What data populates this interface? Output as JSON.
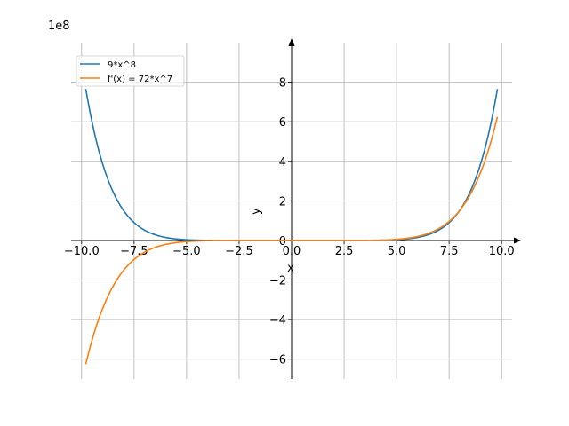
{
  "chart_data": {
    "type": "line",
    "offset_text": "1e8",
    "xlabel": "x",
    "ylabel": "y",
    "xlim": [
      -10.5,
      10.5
    ],
    "ylim": [
      -7.0,
      10.0
    ],
    "x_ticks": [
      -10.0,
      -7.5,
      -5.0,
      -2.5,
      0.0,
      2.5,
      5.0,
      7.5,
      10.0
    ],
    "x_tick_labels": [
      "−10.0",
      "−7.5",
      "−5.0",
      "−2.5",
      "0.0",
      "2.5",
      "5.0",
      "7.5",
      "10.0"
    ],
    "y_ticks": [
      -6,
      -4,
      -2,
      0,
      2,
      4,
      6,
      8
    ],
    "y_tick_labels": [
      "−6",
      "−4",
      "−2",
      "0",
      "2",
      "4",
      "6",
      "8"
    ],
    "grid": true,
    "legend_position": "top-left",
    "x_range": [
      -9.8,
      9.8
    ],
    "series": [
      {
        "name": "9*x^8",
        "formula": "9*x^8",
        "color": "#1f77b4"
      },
      {
        "name": "f'(x) = 72*x^7",
        "formula": "72*x^7",
        "color": "#ff7f0e"
      }
    ],
    "sample_points": {
      "x": [
        -9.8,
        -7.5,
        -5.0,
        -2.5,
        0.0,
        2.5,
        5.0,
        7.5,
        9.8
      ],
      "9*x^8": [
        7.66,
        0.9,
        0.035,
        0.0001,
        0.0,
        0.0001,
        0.035,
        0.9,
        7.66
      ],
      "f'(x) = 72*x^7": [
        -6.25,
        -0.96,
        -0.056,
        -0.0004,
        0.0,
        0.0004,
        0.056,
        0.96,
        6.25
      ]
    }
  }
}
